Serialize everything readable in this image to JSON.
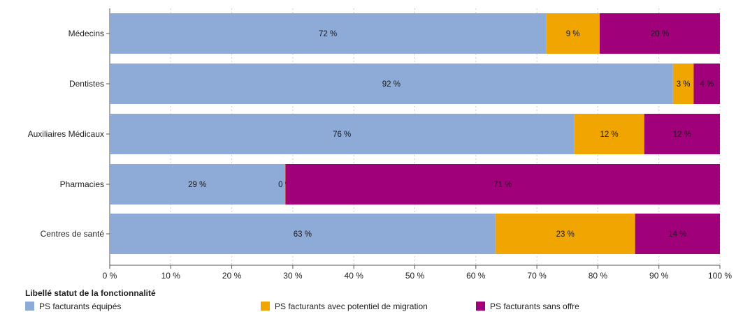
{
  "chart_data": {
    "type": "bar",
    "orientation": "horizontal",
    "stacked": true,
    "categories": [
      "Médecins",
      "Dentistes",
      "Auxiliaires Médicaux",
      "Pharmacies",
      "Centres de santé"
    ],
    "series": [
      {
        "name": "PS facturants équipés",
        "color": "#8eaad6",
        "values": [
          71.5,
          92.3,
          76.1,
          28.7,
          63.2
        ],
        "labels": [
          "72 %",
          "92 %",
          "76 %",
          "29 %",
          "63 %"
        ]
      },
      {
        "name": "PS facturants avec potentiel de migration",
        "color": "#f0a500",
        "values": [
          8.8,
          3.4,
          11.5,
          0.1,
          22.9
        ],
        "labels": [
          "9 %",
          "3 %",
          "12 %",
          "0 %",
          "23 %"
        ]
      },
      {
        "name": "PS facturants sans offre",
        "color": "#a0007a",
        "values": [
          19.7,
          4.3,
          12.4,
          71.2,
          13.9
        ],
        "labels": [
          "20 %",
          "4 %",
          "12 %",
          "71 %",
          "14 %"
        ]
      }
    ],
    "xlim": [
      0,
      100
    ],
    "xticks": [
      "0 %",
      "10 %",
      "20 %",
      "30 %",
      "40 %",
      "50 %",
      "60 %",
      "70 %",
      "80 %",
      "90 %",
      "100 %"
    ],
    "grid": true,
    "legend": {
      "title": "Libellé statut de la fonctionnalité",
      "position": "bottom-left"
    }
  }
}
